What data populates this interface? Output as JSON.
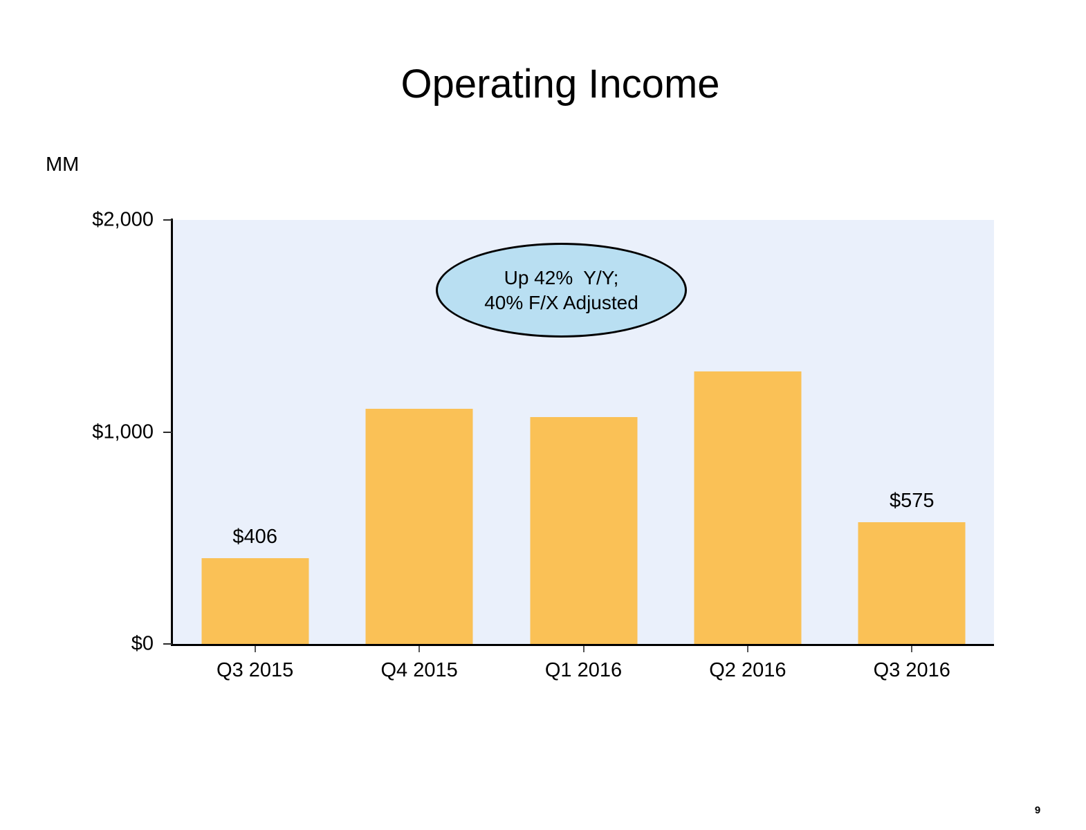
{
  "title": "Operating Income",
  "units_label": "MM",
  "page_number": "9",
  "annotation": {
    "line1": "Up 42%  Y/Y;",
    "line2": "40% F/X Adjusted",
    "fill_color": "#B9DFF2",
    "border_color": "#000000"
  },
  "colors": {
    "bar": "#FAC156",
    "plot_background": "#EAF0FB",
    "axis": "#000000",
    "text": "#000000"
  },
  "chart_data": {
    "type": "bar",
    "title": "Operating Income",
    "units": "MM",
    "categories": [
      "Q3 2015",
      "Q4 2015",
      "Q1 2016",
      "Q2 2016",
      "Q3 2016"
    ],
    "values": [
      406,
      1108,
      1071,
      1285,
      575
    ],
    "data_labels": [
      "$406",
      null,
      null,
      null,
      "$575"
    ],
    "xlabel": "",
    "ylabel": "MM",
    "ylim": [
      0,
      2000
    ],
    "yticks": [
      {
        "value": 0,
        "label": "$0"
      },
      {
        "value": 1000,
        "label": "$1,000"
      },
      {
        "value": 2000,
        "label": "$2,000"
      }
    ],
    "grid": false,
    "legend": "none",
    "annotation_text": "Up 42% Y/Y; 40% F/X Adjusted"
  }
}
